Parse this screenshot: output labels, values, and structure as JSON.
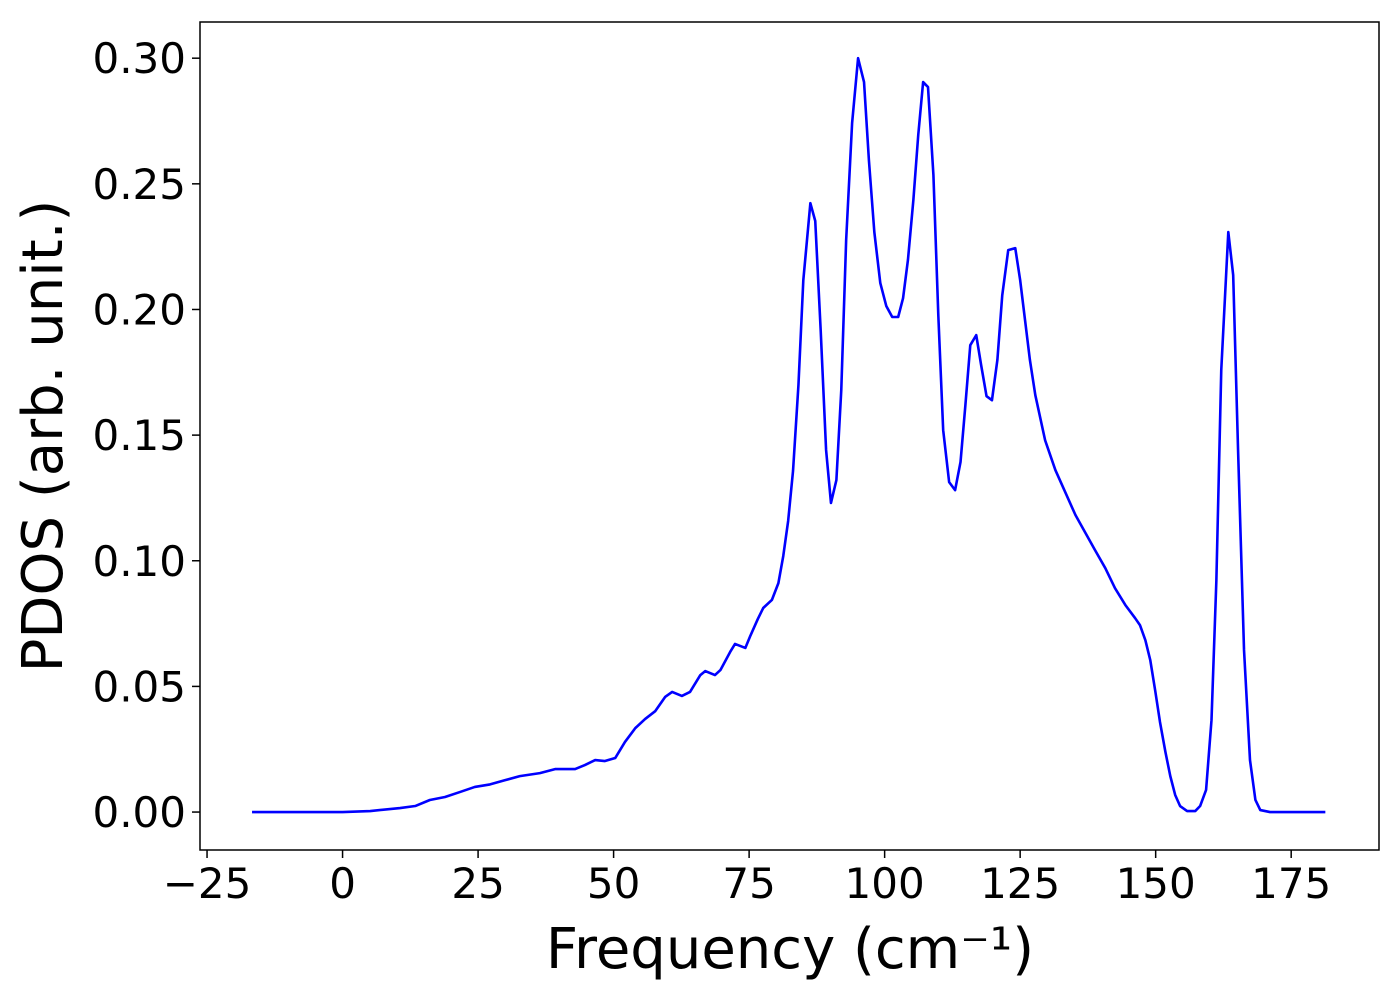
{
  "chart_data": {
    "type": "line",
    "xlabel": "Frequency (cm⁻¹)",
    "ylabel": "PDOS (arb. unit.)",
    "color": "#0000ff",
    "x": [
      -16.7,
      0,
      5.1,
      10.6,
      13.4,
      16.1,
      18.9,
      21.7,
      24.4,
      27.2,
      30,
      32.7,
      36.4,
      39.2,
      41,
      42.9,
      44.7,
      46.6,
      48.4,
      50.3,
      52.1,
      54,
      55.8,
      57.7,
      59.5,
      60.8,
      62.6,
      64.1,
      66,
      66.9,
      68.7,
      69.7,
      71.5,
      72.4,
      74.3,
      75.2,
      76.6,
      77.6,
      79.2,
      80.4,
      81.3,
      82.2,
      83.1,
      84.1,
      85,
      86.3,
      87.2,
      88.2,
      89.2,
      90.1,
      91.1,
      92,
      92.9,
      94,
      95.1,
      96.2,
      97.1,
      98.1,
      99.2,
      100.3,
      101.4,
      102.5,
      103.4,
      104.3,
      105.3,
      106.2,
      107.1,
      108,
      109,
      109.9,
      110.8,
      111.9,
      113,
      114,
      114.9,
      115.8,
      116.9,
      117.8,
      118.8,
      119.8,
      120.8,
      121.7,
      122.8,
      124.1,
      125,
      125.9,
      126.8,
      127.8,
      129.6,
      131.5,
      135.2,
      138.8,
      140.7,
      142.5,
      144.4,
      146.2,
      147.1,
      148.1,
      149,
      149.9,
      150.8,
      151.8,
      152.7,
      153.6,
      154.5,
      155.8,
      157.3,
      158.2,
      159.3,
      160.3,
      161.2,
      162.1,
      163.4,
      164.3,
      165.2,
      166.3,
      167.4,
      168.4,
      169.3,
      171.1,
      181.3
    ],
    "values": [
      0,
      0,
      0.0004,
      0.0016,
      0.0024,
      0.0048,
      0.006,
      0.008,
      0.01,
      0.011,
      0.0127,
      0.0143,
      0.0155,
      0.0171,
      0.0171,
      0.0171,
      0.0187,
      0.0207,
      0.0203,
      0.0215,
      0.0279,
      0.0334,
      0.037,
      0.0402,
      0.0458,
      0.0478,
      0.0462,
      0.0478,
      0.0545,
      0.0561,
      0.0545,
      0.0565,
      0.0637,
      0.0669,
      0.0653,
      0.07,
      0.0768,
      0.0812,
      0.0844,
      0.0911,
      0.1019,
      0.1158,
      0.1357,
      0.1699,
      0.2117,
      0.2423,
      0.2352,
      0.1918,
      0.1441,
      0.123,
      0.1321,
      0.1679,
      0.2276,
      0.2742,
      0.3,
      0.2905,
      0.2594,
      0.2308,
      0.2105,
      0.2014,
      0.197,
      0.197,
      0.2045,
      0.2197,
      0.2435,
      0.2694,
      0.2905,
      0.2885,
      0.2535,
      0.1978,
      0.152,
      0.1313,
      0.1281,
      0.1393,
      0.162,
      0.1858,
      0.1898,
      0.1779,
      0.1655,
      0.1639,
      0.1799,
      0.2057,
      0.2236,
      0.2244,
      0.2117,
      0.1958,
      0.1799,
      0.1659,
      0.148,
      0.1361,
      0.1182,
      0.1043,
      0.0971,
      0.0891,
      0.0824,
      0.0772,
      0.0744,
      0.0684,
      0.0605,
      0.0485,
      0.0358,
      0.0239,
      0.0143,
      0.0068,
      0.0024,
      0.0004,
      0.0004,
      0.0024,
      0.0088,
      0.0366,
      0.0923,
      0.1759,
      0.2308,
      0.2137,
      0.1441,
      0.0645,
      0.0207,
      0.0048,
      0.0008,
      0,
      0
    ],
    "xlim": [
      -26.3,
      191.2
    ],
    "ylim": [
      -0.0151,
      0.3144
    ],
    "xticks": [
      {
        "value": -25,
        "label": "−25"
      },
      0,
      25,
      50,
      75,
      100,
      125,
      150,
      175
    ],
    "yticks": [
      {
        "value": 0,
        "label": "0.00"
      },
      {
        "value": 0.05,
        "label": "0.05"
      },
      {
        "value": 0.1,
        "label": "0.10"
      },
      {
        "value": 0.15,
        "label": "0.15"
      },
      {
        "value": 0.2,
        "label": "0.20"
      },
      {
        "value": 0.25,
        "label": "0.25"
      },
      {
        "value": 0.3,
        "label": "0.30"
      }
    ],
    "grid": false
  }
}
